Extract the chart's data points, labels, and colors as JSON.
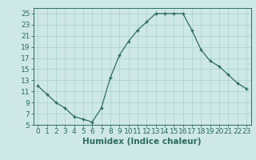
{
  "x": [
    0,
    1,
    2,
    3,
    4,
    5,
    6,
    7,
    8,
    9,
    10,
    11,
    12,
    13,
    14,
    15,
    16,
    17,
    18,
    19,
    20,
    21,
    22,
    23
  ],
  "y": [
    12,
    10.5,
    9,
    8,
    6.5,
    6,
    5.5,
    8,
    13.5,
    17.5,
    20,
    22,
    23.5,
    25,
    25,
    25,
    25,
    22,
    18.5,
    16.5,
    15.5,
    14,
    12.5,
    11.5
  ],
  "line_color": "#2e6b60",
  "bg_color": "#cde8e5",
  "grid_color": "#b0d4d0",
  "xlabel": "Humidex (Indice chaleur)",
  "xlim": [
    -0.5,
    23.5
  ],
  "ylim": [
    5,
    26
  ],
  "yticks": [
    5,
    7,
    9,
    11,
    13,
    15,
    17,
    19,
    21,
    23,
    25
  ],
  "xticks": [
    0,
    1,
    2,
    3,
    4,
    5,
    6,
    7,
    8,
    9,
    10,
    11,
    12,
    13,
    14,
    15,
    16,
    17,
    18,
    19,
    20,
    21,
    22,
    23
  ],
  "tick_fontsize": 6.5,
  "xlabel_fontsize": 7.5
}
